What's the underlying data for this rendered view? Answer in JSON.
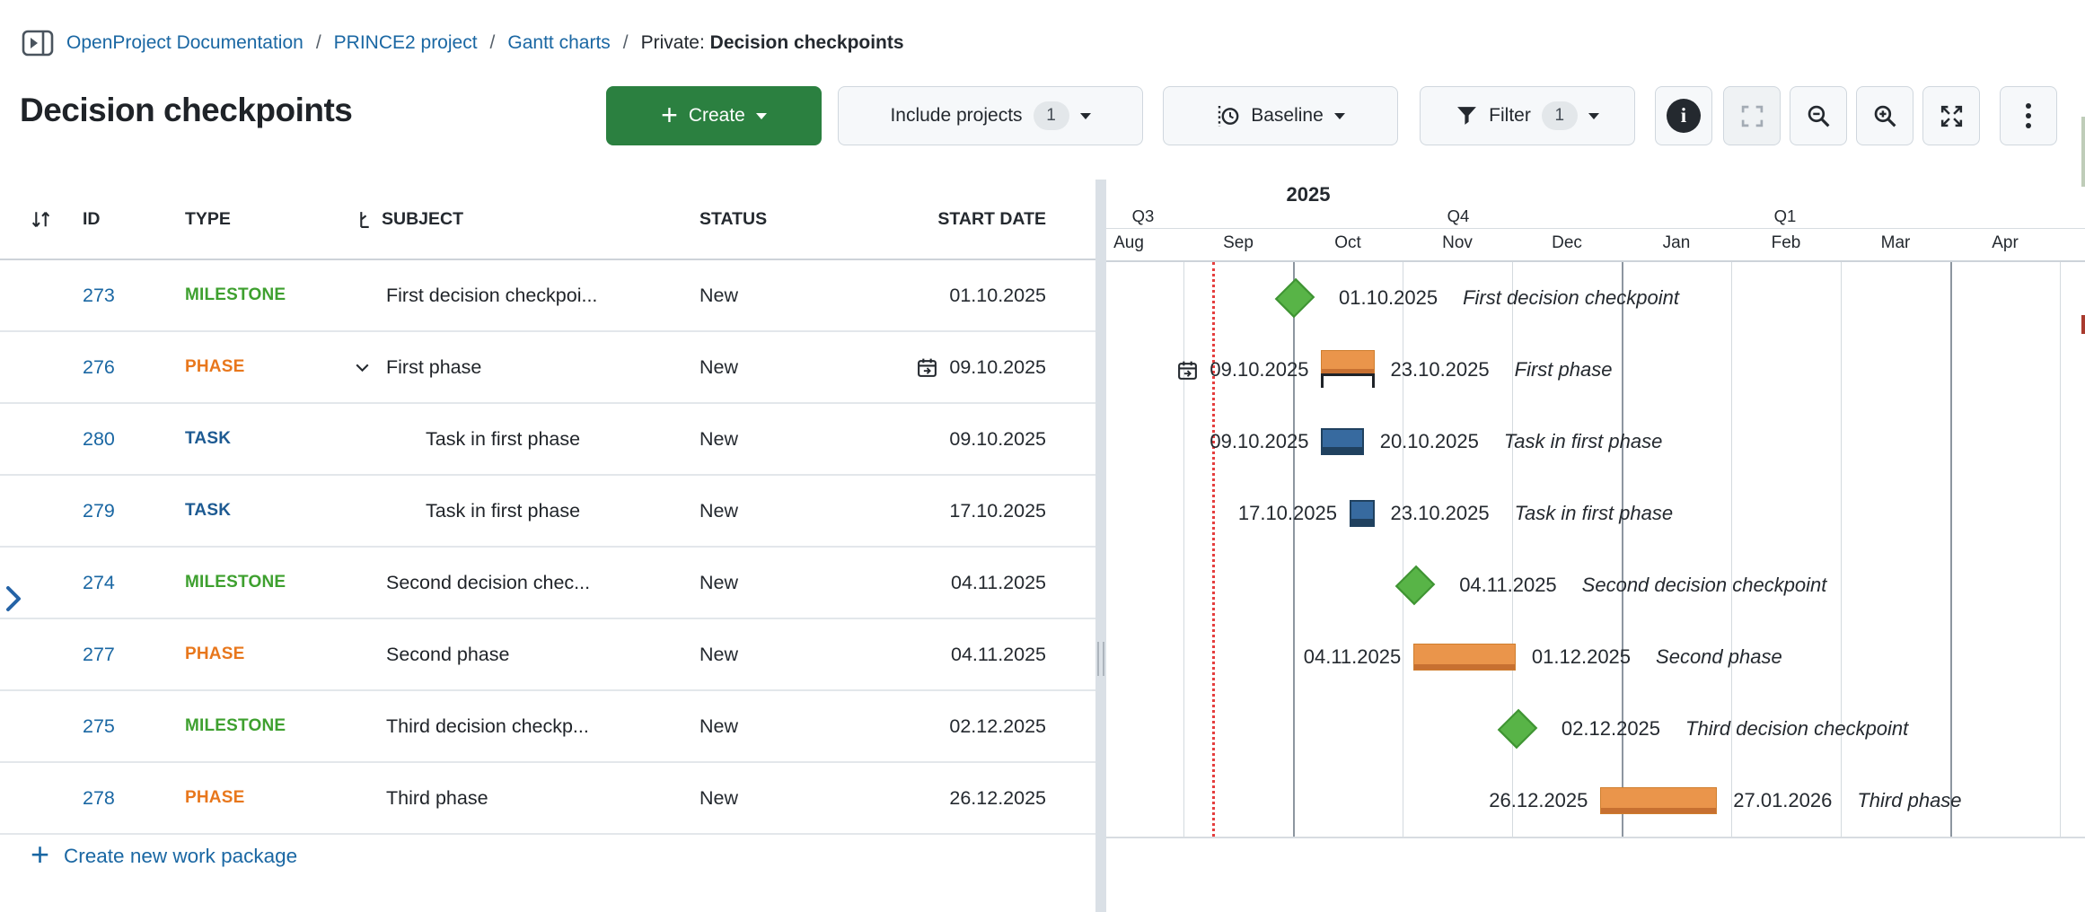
{
  "breadcrumb": {
    "links": [
      "OpenProject Documentation",
      "PRINCE2 project",
      "Gantt charts"
    ],
    "separator": "/",
    "current_prefix": "Private: ",
    "current_title": "Decision checkpoints"
  },
  "page": {
    "title": "Decision checkpoints"
  },
  "toolbar": {
    "create": {
      "label": "Create"
    },
    "include_projects": {
      "label": "Include projects",
      "count": "1"
    },
    "baseline": {
      "label": "Baseline"
    },
    "filter": {
      "label": "Filter",
      "count": "1"
    }
  },
  "table": {
    "headers": {
      "id": "ID",
      "type": "TYPE",
      "subject": "SUBJECT",
      "status": "STATUS",
      "start_date": "START DATE"
    },
    "rows": [
      {
        "id": "273",
        "type": "MILESTONE",
        "subject": "First decision checkpoi...",
        "status": "New",
        "start_date": "01.10.2025",
        "indent": 0,
        "chevron": false,
        "calendar_icon": false
      },
      {
        "id": "276",
        "type": "PHASE",
        "subject": "First phase",
        "status": "New",
        "start_date": "09.10.2025",
        "indent": 0,
        "chevron": true,
        "calendar_icon": true
      },
      {
        "id": "280",
        "type": "TASK",
        "subject": "Task in first phase",
        "status": "New",
        "start_date": "09.10.2025",
        "indent": 1,
        "chevron": false,
        "calendar_icon": false
      },
      {
        "id": "279",
        "type": "TASK",
        "subject": "Task in first phase",
        "status": "New",
        "start_date": "17.10.2025",
        "indent": 1,
        "chevron": false,
        "calendar_icon": false
      },
      {
        "id": "274",
        "type": "MILESTONE",
        "subject": "Second decision chec...",
        "status": "New",
        "start_date": "04.11.2025",
        "indent": 0,
        "chevron": false,
        "calendar_icon": false
      },
      {
        "id": "277",
        "type": "PHASE",
        "subject": "Second phase",
        "status": "New",
        "start_date": "04.11.2025",
        "indent": 0,
        "chevron": false,
        "calendar_icon": false
      },
      {
        "id": "275",
        "type": "MILESTONE",
        "subject": "Third decision checkp...",
        "status": "New",
        "start_date": "02.12.2025",
        "indent": 0,
        "chevron": false,
        "calendar_icon": false
      },
      {
        "id": "278",
        "type": "PHASE",
        "subject": "Third phase",
        "status": "New",
        "start_date": "26.12.2025",
        "indent": 0,
        "chevron": false,
        "calendar_icon": false
      }
    ],
    "create_link": "Create new work package"
  },
  "gantt": {
    "timeline": {
      "year": "2025",
      "quarters": [
        "Q3",
        "Q4",
        "Q1"
      ],
      "months": [
        "Aug",
        "Sep",
        "Oct",
        "Nov",
        "Dec",
        "Jan",
        "Feb",
        "Mar",
        "Apr"
      ]
    },
    "rows": [
      {
        "kind": "milestone",
        "date": "01.10.2025",
        "label": "First decision checkpoint"
      },
      {
        "kind": "phase",
        "start": "09.10.2025",
        "end": "23.10.2025",
        "label": "First phase",
        "aggregate_bracket": true,
        "calendar_icon": true
      },
      {
        "kind": "task",
        "start": "09.10.2025",
        "end": "20.10.2025",
        "label": "Task in first phase"
      },
      {
        "kind": "task",
        "start": "17.10.2025",
        "end": "23.10.2025",
        "label": "Task in first phase"
      },
      {
        "kind": "milestone",
        "date": "04.11.2025",
        "label": "Second decision checkpoint"
      },
      {
        "kind": "phase",
        "start": "04.11.2025",
        "end": "01.12.2025",
        "label": "Second phase"
      },
      {
        "kind": "milestone",
        "date": "02.12.2025",
        "label": "Third decision checkpoint"
      },
      {
        "kind": "phase",
        "start": "26.12.2025",
        "end": "27.01.2026",
        "label": "Third phase"
      }
    ]
  },
  "colors": {
    "link_blue": "#1A67A3",
    "type_milestone": "#3EA02F",
    "type_phase": "#E8771C",
    "type_task": "#1D5A92",
    "create_button_green": "#2B8040",
    "milestone_diamond_fill": "#58B447",
    "milestone_diamond_border": "#3F9433",
    "phase_bar_fill": "#EA954B",
    "phase_bar_shade": "#C77031",
    "task_bar_fill": "#376A9F",
    "task_bar_shade": "#20415F",
    "today_line_red": "#E53E3E"
  }
}
